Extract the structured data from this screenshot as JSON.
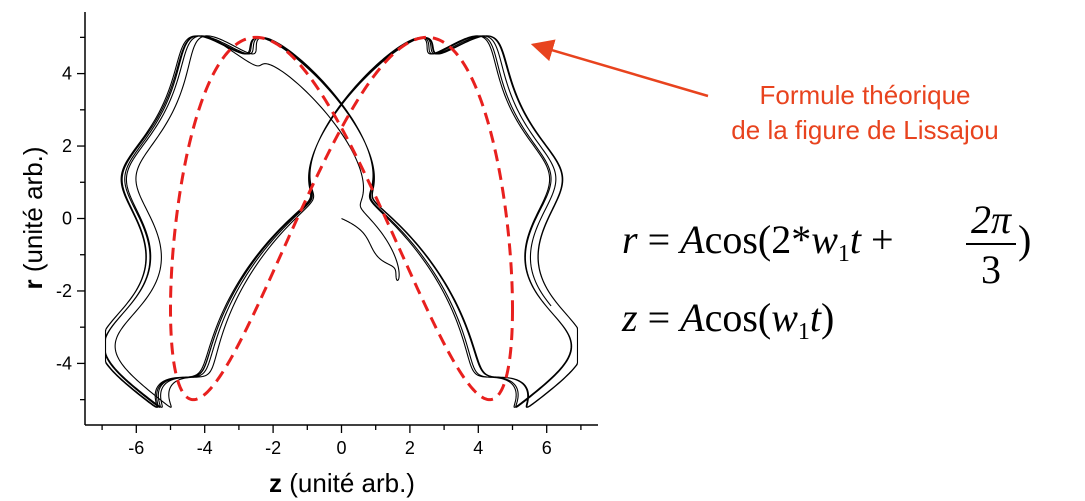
{
  "chart_data": {
    "type": "line",
    "xlabel_bold": "z",
    "xlabel_rest": " (unité arb.)",
    "ylabel_bold": "r",
    "ylabel_rest": " (unité arb.)",
    "xlim": [
      -7.5,
      7.5
    ],
    "ylim": [
      -5.7,
      5.7
    ],
    "x_ticks": [
      -6,
      -4,
      -2,
      0,
      2,
      4,
      6
    ],
    "y_ticks": [
      -4,
      -2,
      0,
      2,
      4
    ],
    "x_tick_labels": [
      "-6",
      "-4",
      "-2",
      "0",
      "2",
      "4",
      "6"
    ],
    "y_tick_labels": [
      "-4",
      "-2",
      "0",
      "2",
      "4"
    ],
    "grid": false,
    "series": [
      {
        "style": "solid",
        "color": "#000000",
        "model": {
          "A": 5,
          "w1": 1,
          "phase": 2.0944,
          "wobble_amp": 0.7,
          "wobble_freq": 11,
          "t_max": 31.4
        }
      },
      {
        "style": "dashed",
        "color": "#e8201e",
        "model": {
          "A": 5,
          "w1": 1,
          "phase": 2.0944
        }
      }
    ],
    "annotation": {
      "line1": "Formule théorique",
      "line2": "de la figure de Lissajou",
      "arrow_target": [
        5.6,
        4.8
      ],
      "color": "#e8431e"
    }
  },
  "formula": {
    "r": "r",
    "eq": " = ",
    "A": "A",
    "cos_open_r": "cos(2*",
    "w": "w",
    "sub1": "1",
    "t": "t",
    "plus": " + ",
    "num": "2π",
    "den": "3",
    "close_r": ")",
    "z": "z",
    "cos_open_z": "cos(",
    "close_z": ")"
  }
}
